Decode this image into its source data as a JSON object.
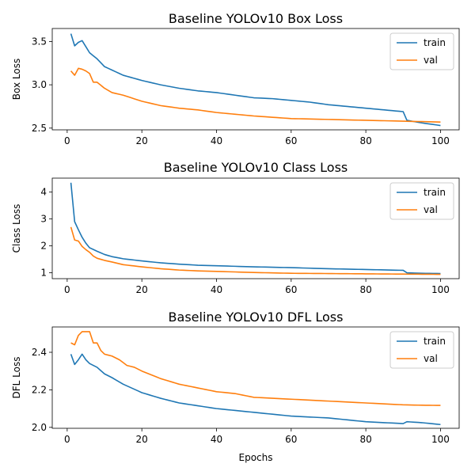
{
  "chart_data": [
    {
      "type": "line",
      "title": "Baseline YOLOv10 Box Loss",
      "xlabel": "",
      "ylabel": "Box Loss",
      "xlim": [
        -4,
        105
      ],
      "ylim": [
        2.48,
        3.65
      ],
      "xticks": [
        0,
        20,
        40,
        60,
        80,
        100
      ],
      "yticks": [
        2.5,
        3.0,
        3.5
      ],
      "ytick_labels": [
        "2.5",
        "3.0",
        "3.5"
      ],
      "legend": "top-right",
      "series": [
        {
          "name": "train",
          "color": "#1f77b4",
          "knots": [
            [
              1,
              3.59
            ],
            [
              2,
              3.45
            ],
            [
              3,
              3.49
            ],
            [
              4,
              3.51
            ],
            [
              5,
              3.44
            ],
            [
              6,
              3.37
            ],
            [
              8,
              3.3
            ],
            [
              10,
              3.21
            ],
            [
              12,
              3.17
            ],
            [
              15,
              3.11
            ],
            [
              20,
              3.05
            ],
            [
              25,
              3.0
            ],
            [
              30,
              2.96
            ],
            [
              35,
              2.93
            ],
            [
              40,
              2.91
            ],
            [
              45,
              2.88
            ],
            [
              50,
              2.85
            ],
            [
              55,
              2.84
            ],
            [
              60,
              2.82
            ],
            [
              65,
              2.8
            ],
            [
              70,
              2.77
            ],
            [
              75,
              2.75
            ],
            [
              80,
              2.73
            ],
            [
              85,
              2.71
            ],
            [
              90,
              2.69
            ],
            [
              91,
              2.59
            ],
            [
              95,
              2.56
            ],
            [
              100,
              2.53
            ]
          ]
        },
        {
          "name": "val",
          "color": "#ff7f0e",
          "knots": [
            [
              1,
              3.16
            ],
            [
              2,
              3.11
            ],
            [
              3,
              3.19
            ],
            [
              4,
              3.18
            ],
            [
              5,
              3.16
            ],
            [
              6,
              3.13
            ],
            [
              7,
              3.03
            ],
            [
              8,
              3.03
            ],
            [
              10,
              2.96
            ],
            [
              12,
              2.91
            ],
            [
              15,
              2.88
            ],
            [
              20,
              2.81
            ],
            [
              25,
              2.76
            ],
            [
              30,
              2.73
            ],
            [
              35,
              2.71
            ],
            [
              40,
              2.68
            ],
            [
              45,
              2.66
            ],
            [
              50,
              2.64
            ],
            [
              60,
              2.61
            ],
            [
              70,
              2.6
            ],
            [
              80,
              2.59
            ],
            [
              90,
              2.58
            ],
            [
              100,
              2.57
            ]
          ]
        }
      ]
    },
    {
      "type": "line",
      "title": "Baseline YOLOv10 Class Loss",
      "xlabel": "",
      "ylabel": "Class Loss",
      "xlim": [
        -4,
        105
      ],
      "ylim": [
        0.78,
        4.52
      ],
      "xticks": [
        0,
        20,
        40,
        60,
        80,
        100
      ],
      "yticks": [
        1,
        2,
        3,
        4
      ],
      "ytick_labels": [
        "1",
        "2",
        "3",
        "4"
      ],
      "legend": "top-right",
      "series": [
        {
          "name": "train",
          "color": "#1f77b4",
          "knots": [
            [
              1,
              4.35
            ],
            [
              2,
              2.9
            ],
            [
              3,
              2.6
            ],
            [
              4,
              2.32
            ],
            [
              5,
              2.1
            ],
            [
              6,
              1.93
            ],
            [
              8,
              1.8
            ],
            [
              10,
              1.68
            ],
            [
              12,
              1.6
            ],
            [
              15,
              1.52
            ],
            [
              20,
              1.44
            ],
            [
              25,
              1.37
            ],
            [
              30,
              1.32
            ],
            [
              35,
              1.28
            ],
            [
              40,
              1.26
            ],
            [
              45,
              1.24
            ],
            [
              50,
              1.22
            ],
            [
              60,
              1.19
            ],
            [
              70,
              1.15
            ],
            [
              80,
              1.12
            ],
            [
              90,
              1.09
            ],
            [
              91,
              1.0
            ],
            [
              95,
              0.98
            ],
            [
              100,
              0.97
            ]
          ]
        },
        {
          "name": "val",
          "color": "#ff7f0e",
          "knots": [
            [
              1,
              2.7
            ],
            [
              2,
              2.22
            ],
            [
              3,
              2.18
            ],
            [
              4,
              1.98
            ],
            [
              5,
              1.86
            ],
            [
              6,
              1.76
            ],
            [
              7,
              1.62
            ],
            [
              8,
              1.54
            ],
            [
              10,
              1.46
            ],
            [
              12,
              1.4
            ],
            [
              15,
              1.3
            ],
            [
              20,
              1.22
            ],
            [
              25,
              1.15
            ],
            [
              30,
              1.1
            ],
            [
              35,
              1.07
            ],
            [
              40,
              1.05
            ],
            [
              45,
              1.03
            ],
            [
              50,
              1.01
            ],
            [
              60,
              0.98
            ],
            [
              70,
              0.97
            ],
            [
              80,
              0.96
            ],
            [
              90,
              0.95
            ],
            [
              100,
              0.94
            ]
          ]
        }
      ]
    },
    {
      "type": "line",
      "title": "Baseline YOLOv10 DFL Loss",
      "xlabel": "Epochs",
      "ylabel": "DFL Loss",
      "xlim": [
        -4,
        105
      ],
      "ylim": [
        1.995,
        2.535
      ],
      "xticks": [
        0,
        20,
        40,
        60,
        80,
        100
      ],
      "yticks": [
        2.0,
        2.2,
        2.4
      ],
      "ytick_labels": [
        "2.0",
        "2.2",
        "2.4"
      ],
      "legend": "top-right",
      "series": [
        {
          "name": "train",
          "color": "#1f77b4",
          "knots": [
            [
              1,
              2.39
            ],
            [
              2,
              2.335
            ],
            [
              3,
              2.36
            ],
            [
              4,
              2.39
            ],
            [
              5,
              2.36
            ],
            [
              6,
              2.34
            ],
            [
              8,
              2.32
            ],
            [
              10,
              2.285
            ],
            [
              12,
              2.265
            ],
            [
              15,
              2.23
            ],
            [
              20,
              2.185
            ],
            [
              25,
              2.155
            ],
            [
              30,
              2.13
            ],
            [
              35,
              2.115
            ],
            [
              40,
              2.1
            ],
            [
              45,
              2.09
            ],
            [
              50,
              2.08
            ],
            [
              55,
              2.07
            ],
            [
              60,
              2.06
            ],
            [
              65,
              2.055
            ],
            [
              70,
              2.05
            ],
            [
              75,
              2.04
            ],
            [
              80,
              2.03
            ],
            [
              85,
              2.025
            ],
            [
              90,
              2.02
            ],
            [
              91,
              2.03
            ],
            [
              95,
              2.025
            ],
            [
              100,
              2.015
            ]
          ]
        },
        {
          "name": "val",
          "color": "#ff7f0e",
          "knots": [
            [
              1,
              2.45
            ],
            [
              2,
              2.44
            ],
            [
              3,
              2.49
            ],
            [
              4,
              2.51
            ],
            [
              5,
              2.51
            ],
            [
              6,
              2.51
            ],
            [
              7,
              2.45
            ],
            [
              8,
              2.45
            ],
            [
              9,
              2.41
            ],
            [
              10,
              2.39
            ],
            [
              12,
              2.38
            ],
            [
              14,
              2.36
            ],
            [
              16,
              2.33
            ],
            [
              18,
              2.32
            ],
            [
              20,
              2.3
            ],
            [
              25,
              2.26
            ],
            [
              30,
              2.23
            ],
            [
              35,
              2.21
            ],
            [
              40,
              2.19
            ],
            [
              45,
              2.18
            ],
            [
              50,
              2.16
            ],
            [
              55,
              2.155
            ],
            [
              60,
              2.15
            ],
            [
              65,
              2.145
            ],
            [
              70,
              2.14
            ],
            [
              75,
              2.135
            ],
            [
              80,
              2.13
            ],
            [
              85,
              2.125
            ],
            [
              90,
              2.12
            ],
            [
              95,
              2.118
            ],
            [
              100,
              2.117
            ]
          ]
        }
      ]
    }
  ]
}
